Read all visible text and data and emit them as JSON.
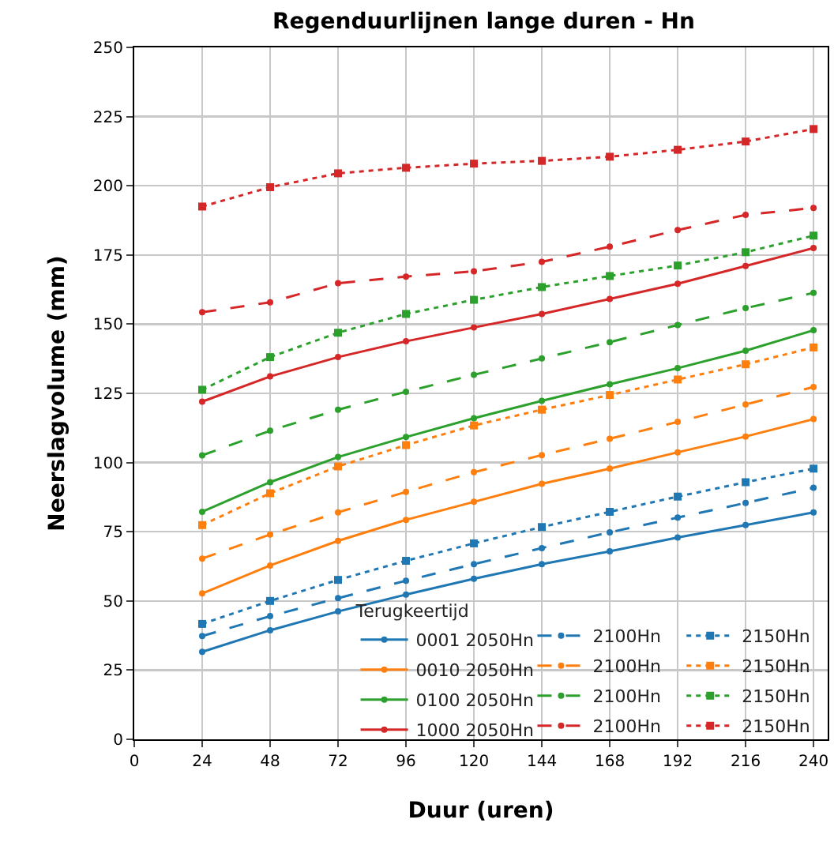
{
  "chart_data": {
    "type": "line",
    "title": "Regenduurlijnen lange duren - Hn",
    "xlabel": "Duur (uren)",
    "ylabel": "Neerslagvolume (mm)",
    "legend_title": "Terugkeertijd",
    "x": [
      24,
      48,
      72,
      96,
      120,
      144,
      168,
      192,
      216,
      240
    ],
    "xlim": [
      0,
      245
    ],
    "xticks": [
      0,
      24,
      48,
      72,
      96,
      120,
      144,
      168,
      192,
      216,
      240
    ],
    "ylim": [
      0,
      250
    ],
    "yticks": [
      0,
      25,
      50,
      75,
      100,
      125,
      150,
      175,
      200,
      225,
      250
    ],
    "grid": true,
    "legend": "bottom right",
    "series": [
      {
        "name": "0001 2050Hn",
        "color": "#1f77b4",
        "line_style": "solid",
        "marker": "circle",
        "values": [
          31.6,
          39.4,
          46.2,
          52.3,
          58.0,
          63.3,
          67.9,
          72.9,
          77.4,
          82.0
        ]
      },
      {
        "name": "0010 2050Hn",
        "color": "#ff7f0e",
        "line_style": "solid",
        "marker": "circle",
        "values": [
          52.7,
          62.8,
          71.7,
          79.3,
          85.8,
          92.3,
          97.8,
          103.7,
          109.4,
          115.7
        ]
      },
      {
        "name": "0100 2050Hn",
        "color": "#2ca02c",
        "line_style": "solid",
        "marker": "circle",
        "values": [
          82.2,
          92.9,
          102.0,
          109.2,
          116.0,
          122.3,
          128.3,
          134.1,
          140.4,
          147.8
        ]
      },
      {
        "name": "1000 2050Hn",
        "color": "#d62728",
        "line_style": "solid",
        "marker": "circle",
        "values": [
          122.0,
          131.1,
          138.1,
          143.8,
          148.8,
          153.7,
          159.1,
          164.6,
          171.0,
          177.5
        ]
      },
      {
        "name": "2100Hn",
        "color": "#1f77b4",
        "line_style": "dashed",
        "marker": "circle",
        "values": [
          37.3,
          44.5,
          51.0,
          57.3,
          63.3,
          69.1,
          74.8,
          80.1,
          85.4,
          90.9
        ]
      },
      {
        "name": "2100Hn",
        "color": "#ff7f0e",
        "line_style": "dashed",
        "marker": "circle",
        "values": [
          65.3,
          74.0,
          82.0,
          89.4,
          96.5,
          102.7,
          108.6,
          114.7,
          121.0,
          127.3
        ]
      },
      {
        "name": "2100Hn",
        "color": "#2ca02c",
        "line_style": "dashed",
        "marker": "circle",
        "values": [
          102.6,
          111.5,
          119.1,
          125.6,
          131.7,
          137.6,
          143.5,
          149.7,
          155.8,
          161.3
        ]
      },
      {
        "name": "2100Hn",
        "color": "#d62728",
        "line_style": "dashed",
        "marker": "circle",
        "values": [
          154.3,
          157.9,
          164.8,
          167.2,
          169.1,
          172.5,
          178.0,
          184.0,
          189.5,
          192.0
        ]
      },
      {
        "name": "2150Hn",
        "color": "#1f77b4",
        "line_style": "dotted",
        "marker": "square",
        "values": [
          41.7,
          50.0,
          57.6,
          64.5,
          70.8,
          76.7,
          82.2,
          87.7,
          92.9,
          97.8
        ]
      },
      {
        "name": "2150Hn",
        "color": "#ff7f0e",
        "line_style": "dotted",
        "marker": "square",
        "values": [
          77.4,
          88.9,
          98.6,
          106.3,
          113.4,
          119.1,
          124.4,
          130.0,
          135.5,
          141.6
        ]
      },
      {
        "name": "2150Hn",
        "color": "#2ca02c",
        "line_style": "dotted",
        "marker": "square",
        "values": [
          126.3,
          138.1,
          146.9,
          153.7,
          158.8,
          163.4,
          167.4,
          171.2,
          176.0,
          182.0
        ]
      },
      {
        "name": "2150Hn",
        "color": "#d62728",
        "line_style": "dotted",
        "marker": "square",
        "values": [
          192.5,
          199.5,
          204.5,
          206.5,
          208.0,
          209.0,
          210.5,
          213.0,
          216.0,
          220.5
        ]
      }
    ]
  }
}
